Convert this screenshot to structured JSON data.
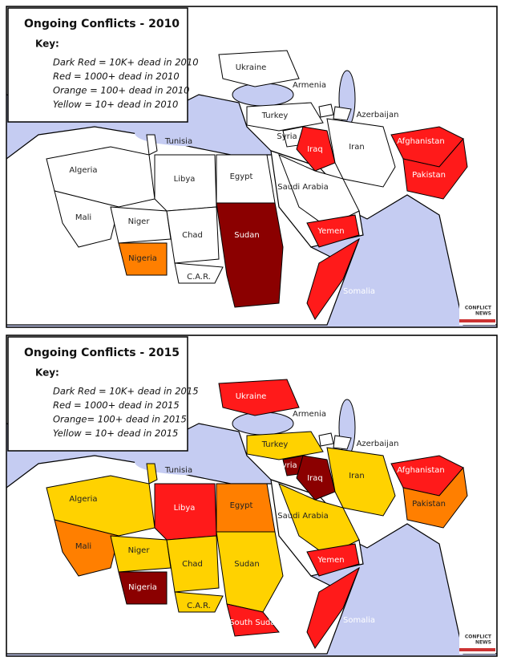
{
  "maps": [
    {
      "title": "Ongoing Conflicts - 2010",
      "key": {
        "heading": "Key:",
        "items": [
          "Dark Red = 10K+ dead in 2010",
          "Red = 1000+ dead in 2010",
          "Orange = 100+ dead in 2010",
          "Yellow = 10+ dead in 2010"
        ]
      },
      "countries": [
        {
          "label": "Ukraine",
          "color": "#ffffff"
        },
        {
          "label": "Armenia",
          "color": "#ffffff"
        },
        {
          "label": "Azerbaijan",
          "color": "#ffffff"
        },
        {
          "label": "Turkey",
          "color": "#ffffff"
        },
        {
          "label": "Syria",
          "color": "#ffffff"
        },
        {
          "label": "Iraq",
          "color": "#ff1a1a"
        },
        {
          "label": "Iran",
          "color": "#ffffff"
        },
        {
          "label": "Afghanistan",
          "color": "#ff1a1a"
        },
        {
          "label": "Pakistan",
          "color": "#ff1a1a"
        },
        {
          "label": "Tunisia",
          "color": "#ffffff"
        },
        {
          "label": "Algeria",
          "color": "#ffffff"
        },
        {
          "label": "Libya",
          "color": "#ffffff"
        },
        {
          "label": "Egypt",
          "color": "#ffffff"
        },
        {
          "label": "Saudi Arabia",
          "color": "#ffffff"
        },
        {
          "label": "Mali",
          "color": "#ffffff"
        },
        {
          "label": "Niger",
          "color": "#ffffff"
        },
        {
          "label": "Chad",
          "color": "#ffffff"
        },
        {
          "label": "Sudan",
          "color": "#8b0000"
        },
        {
          "label": "Yemen",
          "color": "#ff1a1a"
        },
        {
          "label": "Nigeria",
          "color": "#ff7f00"
        },
        {
          "label": "C.A.R.",
          "color": "#ffffff"
        },
        {
          "label": "Somalia",
          "color": "#ff1a1a"
        }
      ],
      "watermark": [
        "CONFLICT",
        "NEWS"
      ]
    },
    {
      "title": "Ongoing Conflicts - 2015",
      "key": {
        "heading": "Key:",
        "items": [
          "Dark Red = 10K+ dead in 2015",
          "Red = 1000+ dead in 2015",
          "Orange= 100+ dead in 2015",
          "Yellow = 10+ dead in 2015"
        ]
      },
      "countries": [
        {
          "label": "Ukraine",
          "color": "#ff1a1a"
        },
        {
          "label": "Armenia",
          "color": "#ffffff"
        },
        {
          "label": "Azerbaijan",
          "color": "#ffffff"
        },
        {
          "label": "Turkey",
          "color": "#ffd200"
        },
        {
          "label": "Syria",
          "color": "#8b0000"
        },
        {
          "label": "Iraq",
          "color": "#8b0000"
        },
        {
          "label": "Iran",
          "color": "#ffd200"
        },
        {
          "label": "Afghanistan",
          "color": "#ff1a1a"
        },
        {
          "label": "Pakistan",
          "color": "#ff7f00"
        },
        {
          "label": "Tunisia",
          "color": "#ffd200"
        },
        {
          "label": "Algeria",
          "color": "#ffd200"
        },
        {
          "label": "Libya",
          "color": "#ff1a1a"
        },
        {
          "label": "Egypt",
          "color": "#ff7f00"
        },
        {
          "label": "Saudi Arabia",
          "color": "#ffd200"
        },
        {
          "label": "Mali",
          "color": "#ff7f00"
        },
        {
          "label": "Niger",
          "color": "#ffd200"
        },
        {
          "label": "Chad",
          "color": "#ffd200"
        },
        {
          "label": "Sudan",
          "color": "#ffd200"
        },
        {
          "label": "Yemen",
          "color": "#ff1a1a"
        },
        {
          "label": "Nigeria",
          "color": "#8b0000"
        },
        {
          "label": "C.A.R.",
          "color": "#ffd200"
        },
        {
          "label": "Somalia",
          "color": "#ff1a1a"
        },
        {
          "label": "South Sudan",
          "color": "#ff1a1a"
        }
      ],
      "watermark": [
        "CONFLICT",
        "NEWS"
      ]
    }
  ]
}
